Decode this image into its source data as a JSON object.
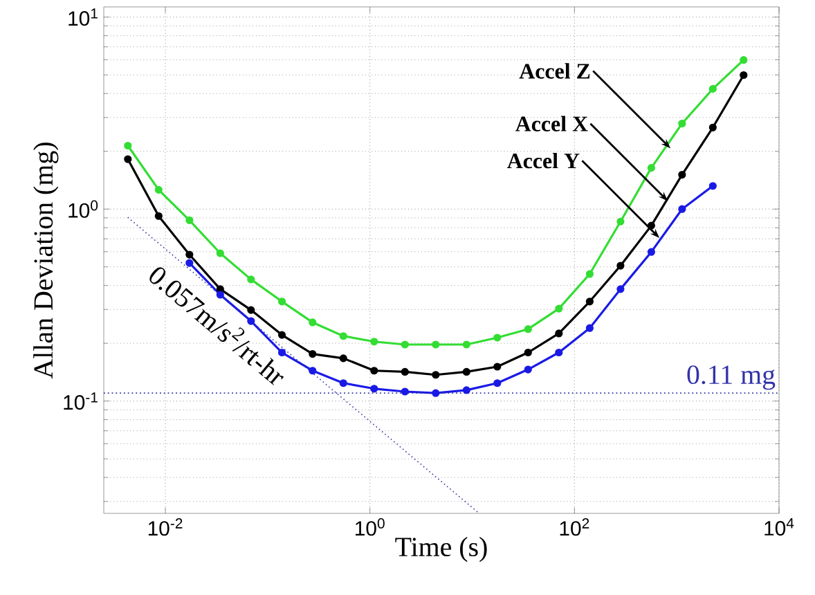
{
  "chart_data": {
    "type": "line",
    "xlabel": "Time (s)",
    "ylabel": "Allan Deviation (mg)",
    "log": "xy",
    "grid": true,
    "marker": "circle",
    "line_style": "solid",
    "xlim": [
      0.0025,
      10000
    ],
    "ylim": [
      0.026,
      11.3
    ],
    "xticks": [
      {
        "value": 0.01,
        "label": "10$^{-2}$"
      },
      {
        "value": 1,
        "label": "10$^{0}$"
      },
      {
        "value": 100,
        "label": "10$^{2}$"
      },
      {
        "value": 10000,
        "label": "10$^{4}$"
      }
    ],
    "yticks": [
      {
        "value": 0.1,
        "label": "10$^{-1}$"
      },
      {
        "value": 1,
        "label": "10$^{0}$"
      },
      {
        "value": 10,
        "label": "10$^{1}$"
      }
    ],
    "series": [
      {
        "color": "#33dd33",
        "x": [
          0.0043,
          0.0086,
          0.0172,
          0.0344,
          0.0688,
          0.138,
          0.275,
          0.55,
          1.1,
          2.2,
          4.4,
          8.8,
          17.6,
          35.2,
          70.4,
          141,
          282,
          564,
          1127,
          2254,
          4508
        ],
        "values": [
          2.14,
          1.26,
          0.875,
          0.589,
          0.43,
          0.33,
          0.257,
          0.218,
          0.204,
          0.197,
          0.197,
          0.197,
          0.214,
          0.237,
          0.303,
          0.459,
          0.861,
          1.64,
          2.79,
          4.23,
          5.98
        ]
      },
      {
        "color": "#000000",
        "x": [
          0.0043,
          0.0086,
          0.0172,
          0.0344,
          0.0688,
          0.138,
          0.275,
          0.55,
          1.1,
          2.2,
          4.4,
          8.8,
          17.6,
          35.2,
          70.4,
          141,
          282,
          564,
          1127,
          2254,
          4508
        ],
        "values": [
          1.82,
          0.92,
          0.579,
          0.383,
          0.298,
          0.221,
          0.176,
          0.167,
          0.144,
          0.142,
          0.137,
          0.142,
          0.151,
          0.179,
          0.225,
          0.33,
          0.507,
          0.82,
          1.51,
          2.66,
          4.99
        ]
      },
      {
        "color": "#1a1ae6",
        "x": [
          0.0172,
          0.0344,
          0.0688,
          0.138,
          0.275,
          0.55,
          1.1,
          2.2,
          4.4,
          8.8,
          17.6,
          35.2,
          70.4,
          141,
          282,
          564,
          1127,
          2254
        ],
        "values": [
          0.524,
          0.358,
          0.261,
          0.179,
          0.144,
          0.124,
          0.116,
          0.112,
          0.11,
          0.114,
          0.124,
          0.146,
          0.179,
          0.24,
          0.383,
          0.598,
          1.0,
          1.32
        ]
      },
      {
        "type": "line",
        "color": "#3333aa",
        "line_style": "dotted",
        "marker": "none",
        "x": [
          0.0043,
          11.7
        ],
        "values": [
          0.905,
          0.026
        ]
      }
    ],
    "ref_lines": [
      {
        "axis": "y",
        "value": 0.11,
        "label": "0.11 mg",
        "color": "#3333aa",
        "line_style": "dotted"
      }
    ],
    "annotations": [
      {
        "text": "Accel Z",
        "x": 870,
        "y": 2.07
      },
      {
        "text": "Accel X",
        "x": 820,
        "y": 1.1
      },
      {
        "text": "Accel Y",
        "x": 680,
        "y": 0.706
      },
      "0.057m/s$^{2}$/rt-hr"
    ]
  }
}
